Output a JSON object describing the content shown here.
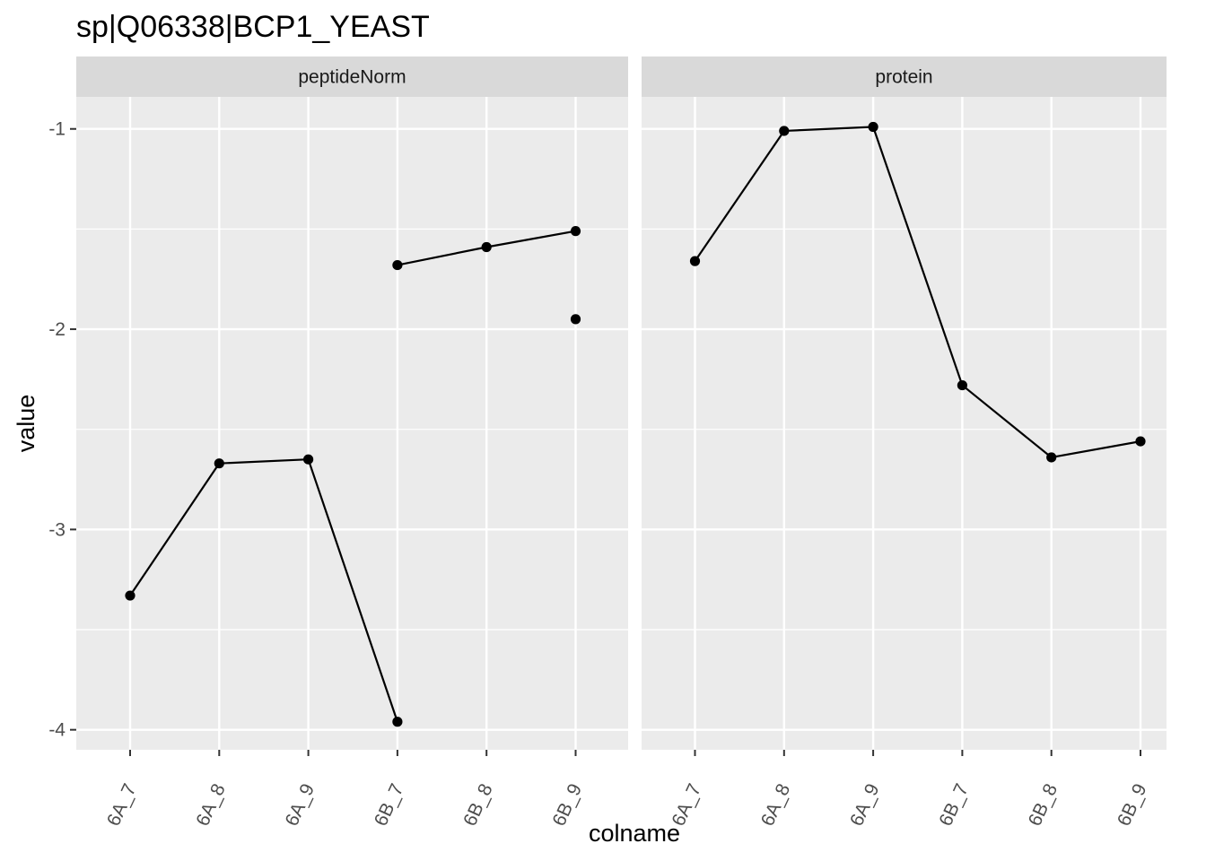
{
  "chart_data": {
    "type": "line",
    "title": "sp|Q06338|BCP1_YEAST",
    "xlabel": "colname",
    "ylabel": "value",
    "categories": [
      "6A_7",
      "6A_8",
      "6A_9",
      "6B_7",
      "6B_8",
      "6B_9"
    ],
    "ylim": [
      -4.1,
      -0.84
    ],
    "yticks": [
      -4,
      -3,
      -2,
      -1
    ],
    "grid": true,
    "panels": [
      {
        "name": "peptideNorm",
        "series": [
          {
            "values": [
              -3.33,
              -2.67,
              -2.65,
              -3.96,
              null,
              null
            ]
          },
          {
            "values": [
              null,
              null,
              null,
              -1.68,
              -1.59,
              -1.51
            ]
          },
          {
            "values": [
              null,
              null,
              null,
              null,
              null,
              -1.95
            ]
          }
        ]
      },
      {
        "name": "protein",
        "series": [
          {
            "values": [
              -1.66,
              -1.01,
              -0.99,
              -2.28,
              -2.64,
              -2.56
            ]
          }
        ]
      }
    ]
  }
}
